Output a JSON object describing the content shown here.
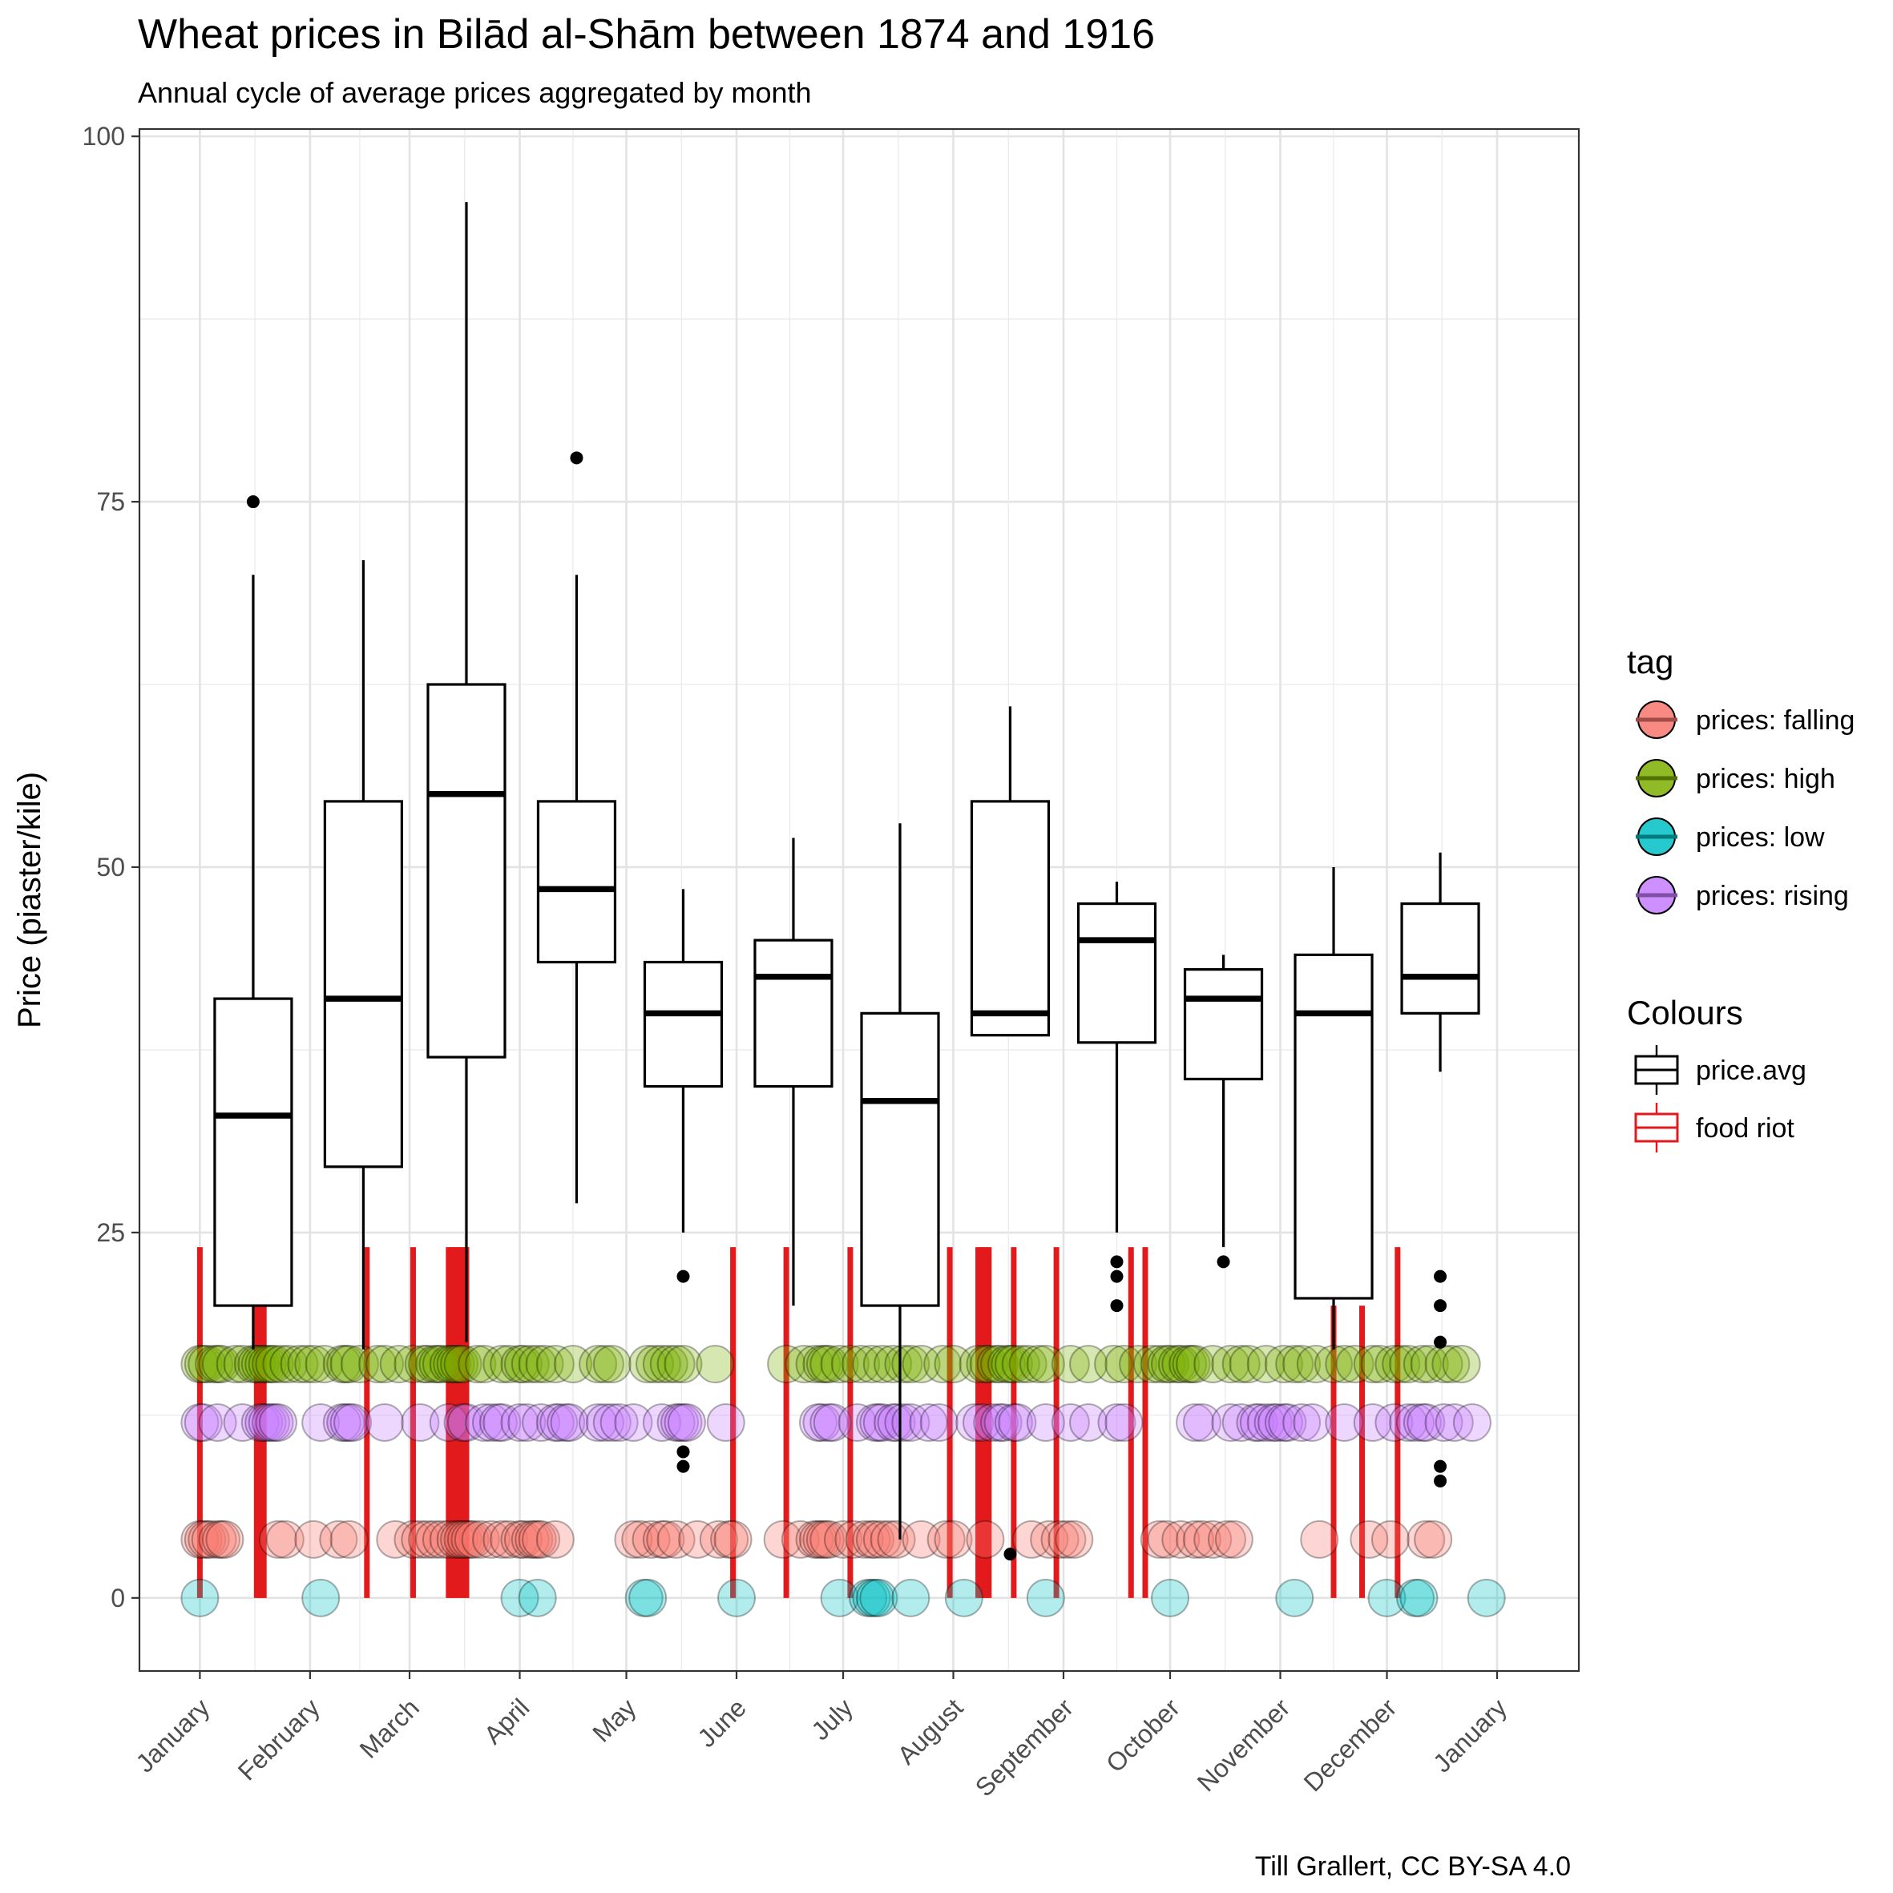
{
  "chart_data": {
    "type": "box+scatter",
    "title": "Wheat prices in Bilād al-Shām between 1874 and 1916",
    "subtitle": "Annual cycle of average prices aggregated by month",
    "ylabel": "Price (piaster/kile)",
    "caption": "Till Grallert, CC BY-SA 4.0",
    "ylim": [
      -5,
      100.5
    ],
    "xlim": [
      -17,
      388
    ],
    "y_ticks": [
      "0",
      "25",
      "50",
      "75",
      "100"
    ],
    "x_ticks": [
      {
        "label": "January",
        "day": 0
      },
      {
        "label": "February",
        "day": 31
      },
      {
        "label": "March",
        "day": 59
      },
      {
        "label": "April",
        "day": 90
      },
      {
        "label": "May",
        "day": 120
      },
      {
        "label": "June",
        "day": 151
      },
      {
        "label": "July",
        "day": 181
      },
      {
        "label": "August",
        "day": 212
      },
      {
        "label": "September",
        "day": 243
      },
      {
        "label": "October",
        "day": 273
      },
      {
        "label": "November",
        "day": 304
      },
      {
        "label": "December",
        "day": 334
      },
      {
        "label": "January",
        "day": 365
      }
    ],
    "grid": true,
    "boxes": [
      {
        "day": 15,
        "q1": 20,
        "median": 33,
        "q3": 41,
        "whisker_low": 17,
        "whisker_high": 70,
        "outliers": [
          75
        ]
      },
      {
        "day": 46,
        "q1": 29.5,
        "median": 41,
        "q3": 54.5,
        "whisker_low": 17,
        "whisker_high": 71,
        "outliers": []
      },
      {
        "day": 75,
        "q1": 37,
        "median": 55,
        "q3": 62.5,
        "whisker_low": 17.5,
        "whisker_high": 95.5,
        "outliers": []
      },
      {
        "day": 106,
        "q1": 43.5,
        "median": 48.5,
        "q3": 54.5,
        "whisker_low": 27,
        "whisker_high": 70,
        "outliers": [
          78
        ]
      },
      {
        "day": 136,
        "q1": 35,
        "median": 40,
        "q3": 43.5,
        "whisker_low": 25,
        "whisker_high": 48.5,
        "outliers": [
          22,
          10,
          9
        ]
      },
      {
        "day": 167,
        "q1": 35,
        "median": 42.5,
        "q3": 45,
        "whisker_low": 20,
        "whisker_high": 52,
        "outliers": []
      },
      {
        "day": 197,
        "q1": 20,
        "median": 34,
        "q3": 40,
        "whisker_low": 4,
        "whisker_high": 53,
        "outliers": []
      },
      {
        "day": 228,
        "q1": 38.5,
        "median": 40,
        "q3": 54.5,
        "whisker_low": 38.5,
        "whisker_high": 61,
        "outliers": [
          3
        ]
      },
      {
        "day": 258,
        "q1": 38,
        "median": 45,
        "q3": 47.5,
        "whisker_low": 25,
        "whisker_high": 49,
        "outliers": [
          23,
          22,
          20
        ]
      },
      {
        "day": 288,
        "q1": 35.5,
        "median": 41,
        "q3": 43,
        "whisker_low": 24,
        "whisker_high": 44,
        "outliers": [
          23
        ]
      },
      {
        "day": 319,
        "q1": 20.5,
        "median": 40,
        "q3": 44,
        "whisker_low": 17,
        "whisker_high": 50,
        "outliers": []
      },
      {
        "day": 349,
        "q1": 40,
        "median": 42.5,
        "q3": 47.5,
        "whisker_low": 36,
        "whisker_high": 51,
        "outliers": [
          22,
          20,
          17.5,
          9,
          8
        ]
      }
    ],
    "food_riots": [
      {
        "day": 0,
        "y_low": 0,
        "y_high": 24
      },
      {
        "day": 16,
        "y_low": 0,
        "y_high": 20
      },
      {
        "day": 17,
        "y_low": 0,
        "y_high": 20
      },
      {
        "day": 18,
        "y_low": 0,
        "y_high": 20
      },
      {
        "day": 47,
        "y_low": 0,
        "y_high": 24
      },
      {
        "day": 60,
        "y_low": 0,
        "y_high": 24
      },
      {
        "day": 70,
        "y_low": 0,
        "y_high": 24
      },
      {
        "day": 71,
        "y_low": 0,
        "y_high": 24
      },
      {
        "day": 72,
        "y_low": 0,
        "y_high": 24
      },
      {
        "day": 73,
        "y_low": 0,
        "y_high": 24
      },
      {
        "day": 74,
        "y_low": 0,
        "y_high": 24
      },
      {
        "day": 75,
        "y_low": 0,
        "y_high": 24
      },
      {
        "day": 150,
        "y_low": 0,
        "y_high": 24
      },
      {
        "day": 165,
        "y_low": 0,
        "y_high": 24
      },
      {
        "day": 183,
        "y_low": 0,
        "y_high": 24
      },
      {
        "day": 211,
        "y_low": 0,
        "y_high": 24
      },
      {
        "day": 219,
        "y_low": 0,
        "y_high": 24
      },
      {
        "day": 220,
        "y_low": 0,
        "y_high": 24
      },
      {
        "day": 221,
        "y_low": 0,
        "y_high": 24
      },
      {
        "day": 222,
        "y_low": 0,
        "y_high": 24
      },
      {
        "day": 229,
        "y_low": 0,
        "y_high": 24
      },
      {
        "day": 241,
        "y_low": 0,
        "y_high": 24
      },
      {
        "day": 262,
        "y_low": 0,
        "y_high": 24
      },
      {
        "day": 266,
        "y_low": 0,
        "y_high": 24
      },
      {
        "day": 319,
        "y_low": 0,
        "y_high": 20
      },
      {
        "day": 327,
        "y_low": 0,
        "y_high": 20
      },
      {
        "day": 337,
        "y_low": 0,
        "y_high": 24
      }
    ],
    "tags": [
      {
        "name": "prices: falling",
        "color": "#F8766D",
        "y": 4,
        "days": [
          0,
          1,
          2,
          3,
          5,
          6,
          7,
          22,
          24,
          32,
          39,
          42,
          55,
          60,
          62,
          64,
          66,
          68,
          70,
          72,
          73,
          74,
          75,
          76,
          77,
          79,
          82,
          85,
          87,
          90,
          91,
          93,
          94,
          95,
          96,
          100,
          122,
          124,
          127,
          130,
          131,
          134,
          140,
          146,
          149,
          150,
          164,
          169,
          173,
          174,
          175,
          176,
          177,
          181,
          184,
          187,
          189,
          190,
          192,
          194,
          196,
          203,
          210,
          212,
          221,
          234,
          239,
          242,
          244,
          246,
          270,
          272,
          276,
          280,
          282,
          285,
          289,
          291,
          315,
          329,
          335,
          345,
          347
        ]
      },
      {
        "name": "prices: high",
        "color": "#7CAE00",
        "y": 16,
        "days": [
          0,
          1,
          2,
          4,
          5,
          6,
          10,
          12,
          15,
          16,
          17,
          18,
          19,
          20,
          21,
          23,
          25,
          28,
          30,
          32,
          35,
          40,
          41,
          42,
          45,
          50,
          52,
          56,
          60,
          63,
          64,
          66,
          67,
          68,
          70,
          71,
          72,
          73,
          74,
          78,
          80,
          85,
          87,
          90,
          91,
          93,
          95,
          97,
          100,
          105,
          112,
          114,
          116,
          126,
          128,
          130,
          132,
          134,
          136,
          145,
          165,
          170,
          173,
          175,
          176,
          177,
          180,
          183,
          186,
          189,
          192,
          195,
          198,
          200,
          203,
          209,
          212,
          219,
          221,
          222,
          224,
          225,
          227,
          228,
          229,
          231,
          233,
          236,
          238,
          245,
          250,
          257,
          260,
          264,
          268,
          270,
          272,
          273,
          275,
          276,
          278,
          279,
          280,
          285,
          290,
          293,
          295,
          300,
          305,
          308,
          310,
          314,
          319,
          322,
          325,
          330,
          332,
          336,
          338,
          340,
          344,
          346,
          350,
          352,
          355
        ]
      },
      {
        "name": "prices: low",
        "color": "#00BFC4",
        "y": 0,
        "days": [
          0,
          34,
          90,
          95,
          125,
          126,
          151,
          180,
          188,
          189,
          190,
          191,
          200,
          215,
          238,
          273,
          308,
          334,
          342,
          343,
          362
        ]
      },
      {
        "name": "prices: rising",
        "color": "#C77CFF",
        "y": 12,
        "days": [
          0,
          1,
          5,
          12,
          17,
          18,
          19,
          20,
          21,
          22,
          34,
          40,
          41,
          42,
          43,
          52,
          62,
          70,
          74,
          75,
          80,
          82,
          84,
          85,
          90,
          92,
          96,
          100,
          101,
          103,
          104,
          112,
          114,
          116,
          118,
          122,
          130,
          134,
          135,
          136,
          137,
          148,
          174,
          175,
          177,
          178,
          185,
          190,
          191,
          192,
          195,
          196,
          198,
          200,
          205,
          208,
          218,
          220,
          223,
          225,
          226,
          229,
          230,
          238,
          245,
          250,
          258,
          260,
          280,
          282,
          290,
          293,
          297,
          298,
          300,
          302,
          303,
          305,
          306,
          310,
          313,
          322,
          330,
          336,
          340,
          342,
          344,
          345,
          350,
          353,
          358
        ]
      }
    ],
    "legend": {
      "position": "right",
      "tag_title": "tag",
      "tag_entries": [
        {
          "label": "prices: falling",
          "color": "#F8766D"
        },
        {
          "label": "prices: high",
          "color": "#7CAE00"
        },
        {
          "label": "prices: low",
          "color": "#00BFC4"
        },
        {
          "label": "prices: rising",
          "color": "#C77CFF"
        }
      ],
      "colours_title": "Colours",
      "colour_entries": [
        {
          "label": "price.avg",
          "color": "#000000"
        },
        {
          "label": "food riot",
          "color": "#E31A1C"
        }
      ]
    }
  }
}
